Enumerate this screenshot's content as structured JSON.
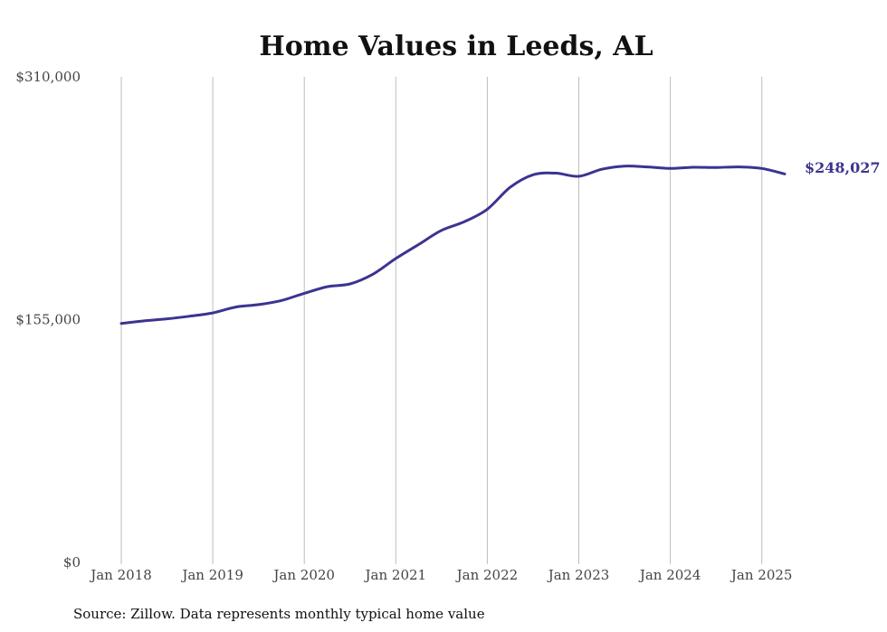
{
  "chart_data": {
    "type": "line",
    "title": "Home Values in Leeds, AL",
    "source": "Source: Zillow. Data represents monthly typical home value",
    "xlabel": "",
    "ylabel": "",
    "ylim": [
      0,
      310000
    ],
    "y_ticks": [
      {
        "value": 0,
        "label": "$0"
      },
      {
        "value": 155000,
        "label": "$155,000"
      },
      {
        "value": 310000,
        "label": "$310,000"
      }
    ],
    "x_ticks": [
      "Jan 2018",
      "Jan 2019",
      "Jan 2020",
      "Jan 2021",
      "Jan 2022",
      "Jan 2023",
      "Jan 2024",
      "Jan 2025"
    ],
    "x_range": [
      "2018-01",
      "2025-04"
    ],
    "grid": "vertical",
    "line_color": "#3b3490",
    "end_label": "$248,027",
    "series": [
      {
        "points": [
          [
            "2018-01",
            152500
          ],
          [
            "2018-04",
            154200
          ],
          [
            "2018-07",
            155500
          ],
          [
            "2018-10",
            157200
          ],
          [
            "2019-01",
            159300
          ],
          [
            "2019-04",
            163000
          ],
          [
            "2019-07",
            164600
          ],
          [
            "2019-10",
            167200
          ],
          [
            "2020-01",
            171800
          ],
          [
            "2020-04",
            176000
          ],
          [
            "2020-07",
            177800
          ],
          [
            "2020-10",
            184000
          ],
          [
            "2021-01",
            194000
          ],
          [
            "2021-04",
            203000
          ],
          [
            "2021-07",
            212000
          ],
          [
            "2021-10",
            217500
          ],
          [
            "2022-01",
            225500
          ],
          [
            "2022-04",
            239500
          ],
          [
            "2022-07",
            247500
          ],
          [
            "2022-10",
            248500
          ],
          [
            "2023-01",
            246500
          ],
          [
            "2023-04",
            251000
          ],
          [
            "2023-07",
            253000
          ],
          [
            "2023-10",
            252500
          ],
          [
            "2024-01",
            251500
          ],
          [
            "2024-04",
            252300
          ],
          [
            "2024-07",
            252100
          ],
          [
            "2024-10",
            252500
          ],
          [
            "2025-01",
            251500
          ],
          [
            "2025-04",
            248027
          ]
        ]
      }
    ]
  }
}
